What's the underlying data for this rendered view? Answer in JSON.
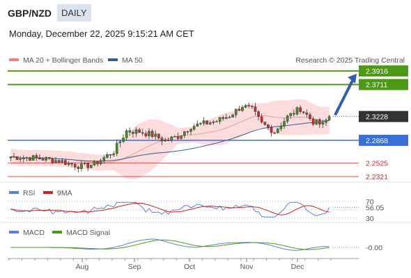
{
  "header": {
    "symbol": "GBP/NZD",
    "timeframe": "DAILY",
    "datetime": "Monday, December 22, 2025 9:15:21 AM CET"
  },
  "colors": {
    "support": "#3a6fd8",
    "resistance_green": "#4d9a16",
    "resistance_red": "#e05050",
    "bollinger_fill": "#fbd6d6",
    "ma50": "#355b8c",
    "rsi": "#5b7fd6",
    "rsi_ma": "#d02020",
    "macd": "#5b7fd6",
    "macd_signal": "#4d9a16",
    "candle_up": "#3f8a2a",
    "candle_down": "#c03030",
    "arrow": "#2e5fa8"
  },
  "chart_data": [
    {
      "type": "candlestick",
      "legend": [
        {
          "name": "MA 20 + Bollinger Bands",
          "color": "#f08080"
        },
        {
          "name": "MA 50",
          "color": "#355b8c"
        }
      ],
      "credit": "Research © 2025 Trading Central",
      "ylim": [
        2.23,
        2.398
      ],
      "x_months": [
        "Aug",
        "Sep",
        "Oct",
        "Nov",
        "Dec"
      ],
      "levels": [
        {
          "value": 2.3916,
          "label": "2.3916",
          "kind": "resistance",
          "style": "green"
        },
        {
          "value": 2.3711,
          "label": "2.3711",
          "kind": "resistance",
          "style": "green"
        },
        {
          "value": 2.3228,
          "label": "2.3228",
          "kind": "last",
          "style": "dark"
        },
        {
          "value": 2.2868,
          "label": "2.2868",
          "kind": "support",
          "style": "blue"
        },
        {
          "value": 2.2525,
          "label": "2.2525",
          "kind": "line",
          "style": "red"
        },
        {
          "value": 2.2321,
          "label": "2.2321",
          "kind": "line",
          "style": "red"
        }
      ],
      "arrow": {
        "from": 2.3228,
        "to": 2.3916
      }
    },
    {
      "type": "line",
      "name": "RSI",
      "legend": [
        {
          "name": "RSI",
          "color": "#5b7fd6"
        },
        {
          "name": "9MA",
          "color": "#d02020"
        }
      ],
      "ylim": [
        25,
        75
      ],
      "ticks": [
        "70",
        "30"
      ],
      "current": "56.05"
    },
    {
      "type": "line",
      "name": "MACD",
      "legend": [
        {
          "name": "MACD",
          "color": "#5b7fd6"
        },
        {
          "name": "MACD Signal",
          "color": "#4d9a16"
        }
      ],
      "current": "-0.00"
    }
  ]
}
